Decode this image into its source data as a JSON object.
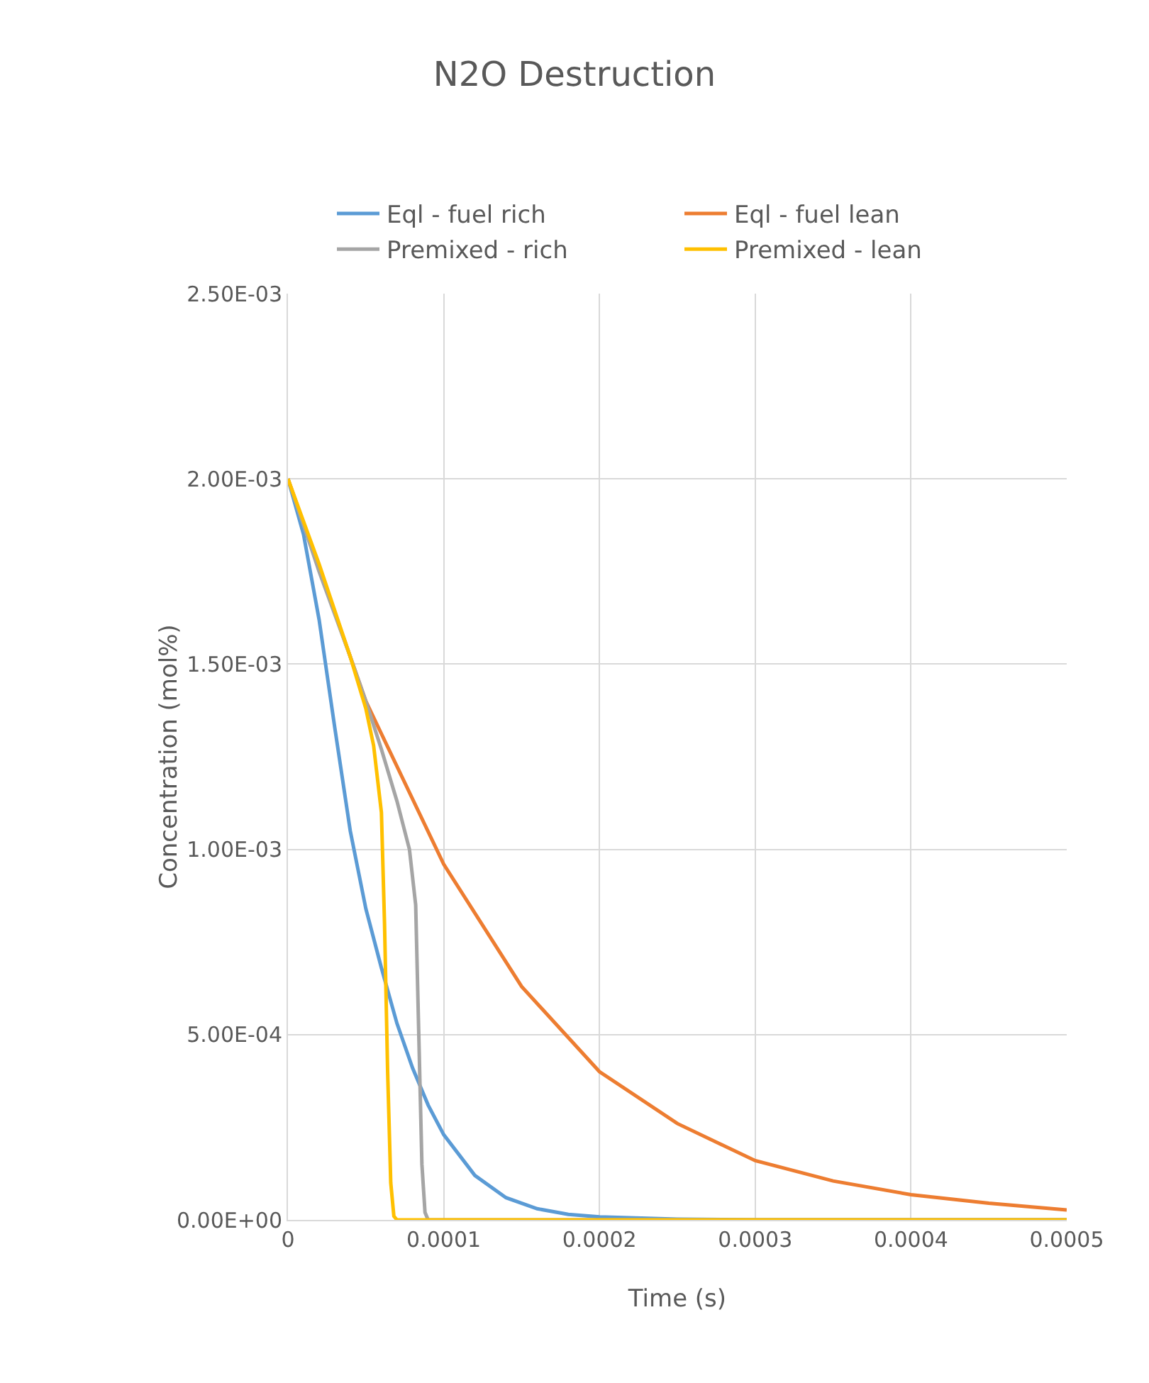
{
  "chart_data": {
    "type": "line",
    "title": "N2O Destruction",
    "xlabel": "Time (s)",
    "ylabel": "Concentration (mol%)",
    "xlim": [
      0,
      0.0005
    ],
    "xticks": [
      0,
      0.0001,
      0.0002,
      0.0003,
      0.0004,
      0.0005
    ],
    "ylim": [
      0,
      0.0025
    ],
    "yticks": [
      {
        "value": 0,
        "label": "0.00E+00"
      },
      {
        "value": 0.0005,
        "label": "5.00E-04"
      },
      {
        "value": 0.001,
        "label": "1.00E-03"
      },
      {
        "value": 0.0015,
        "label": "1.50E-03"
      },
      {
        "value": 0.002,
        "label": "2.00E-03"
      },
      {
        "value": 0.0025,
        "label": "2.50E-03"
      }
    ],
    "grid": true,
    "legend": "top",
    "marker": "none",
    "line_style": "solid",
    "series": [
      {
        "name": "Eql - fuel rich",
        "color": "#5b9bd5",
        "x": [
          0,
          1e-05,
          2e-05,
          3e-05,
          4e-05,
          5e-05,
          6e-05,
          7e-05,
          8e-05,
          9e-05,
          0.0001,
          0.00012,
          0.00014,
          0.00016,
          0.00018,
          0.0002,
          0.00025,
          0.0003,
          0.0005
        ],
        "values": [
          0.002,
          0.00185,
          0.00162,
          0.00133,
          0.00105,
          0.00084,
          0.00068,
          0.00053,
          0.00041,
          0.00031,
          0.00023,
          0.00012,
          6e-05,
          3e-05,
          1.5e-05,
          8e-06,
          2e-06,
          0,
          0
        ]
      },
      {
        "name": "Eql - fuel lean",
        "color": "#ed7d31",
        "x": [
          0,
          5e-05,
          0.0001,
          0.00015,
          0.0002,
          0.00025,
          0.0003,
          0.00035,
          0.0004,
          0.00045,
          0.0005
        ],
        "values": [
          0.002,
          0.0014,
          0.00096,
          0.00063,
          0.0004,
          0.00026,
          0.00016,
          0.000105,
          6.8e-05,
          4.5e-05,
          2.7e-05
        ]
      },
      {
        "name": "Premixed - rich",
        "color": "#a5a5a5",
        "x": [
          0,
          2e-05,
          4e-05,
          5e-05,
          6e-05,
          7e-05,
          7.8e-05,
          8.2e-05,
          8.4e-05,
          8.6e-05,
          8.8e-05,
          9e-05,
          0.0005
        ],
        "values": [
          0.002,
          0.00175,
          0.00152,
          0.0014,
          0.00127,
          0.00113,
          0.001,
          0.00085,
          0.0005,
          0.00015,
          2e-05,
          0,
          0
        ]
      },
      {
        "name": "Premixed - lean",
        "color": "#ffc000",
        "x": [
          0,
          2e-05,
          4e-05,
          5e-05,
          5.5e-05,
          6e-05,
          6.2e-05,
          6.4e-05,
          6.6e-05,
          6.8e-05,
          7e-05,
          0.0005
        ],
        "values": [
          0.002,
          0.00177,
          0.00152,
          0.00138,
          0.00128,
          0.0011,
          0.0008,
          0.0004,
          0.0001,
          1e-05,
          0,
          0
        ]
      }
    ]
  }
}
